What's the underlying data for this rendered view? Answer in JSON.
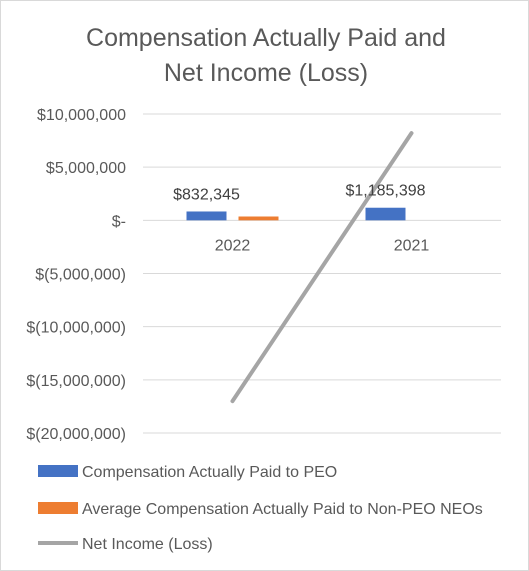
{
  "chart_data": {
    "type": "bar",
    "title": [
      "Compensation Actually Paid and",
      "Net Income (Loss)"
    ],
    "categories": [
      "2022",
      "2021"
    ],
    "y_ticks": [
      "$10,000,000",
      "$5,000,000",
      "$-",
      "$(5,000,000)",
      "$(10,000,000)",
      "$(15,000,000)",
      "$(20,000,000)"
    ],
    "y_tick_values": [
      10000000,
      5000000,
      0,
      -5000000,
      -10000000,
      -15000000,
      -20000000
    ],
    "ylim": [
      -20000000,
      10000000
    ],
    "grid": true,
    "legend_position": "bottom",
    "series": [
      {
        "name": "Compensation Actually Paid to PEO",
        "type": "bar",
        "color": "#4472c4",
        "values": [
          832345,
          1185398
        ],
        "labels": [
          "$832,345",
          "$1,185,398"
        ]
      },
      {
        "name": "Average Compensation Actually Paid to Non-PEO NEOs",
        "type": "bar",
        "color": "#ed7d31",
        "values": [
          360000,
          null
        ],
        "labels": [
          "",
          ""
        ]
      },
      {
        "name": "Net Income (Loss)",
        "type": "line",
        "color": "#a5a5a5",
        "values": [
          -17000000,
          8200000
        ]
      }
    ]
  }
}
